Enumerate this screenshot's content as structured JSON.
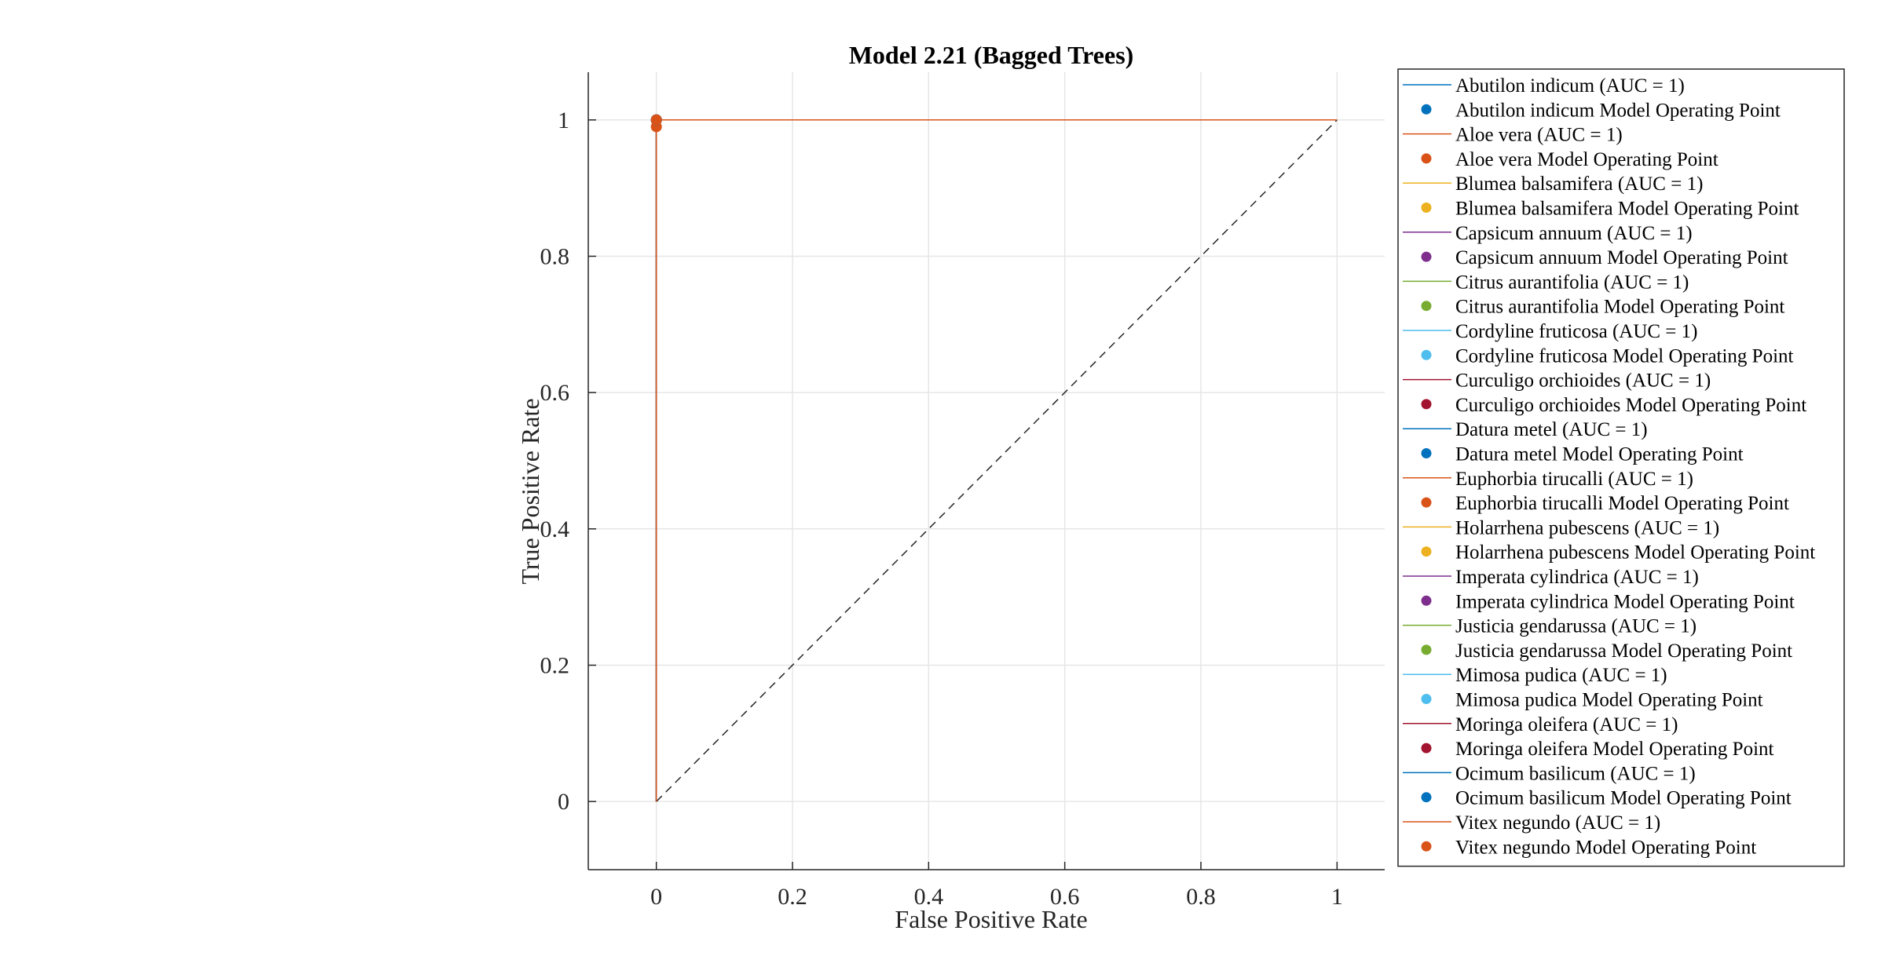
{
  "chart_data": {
    "type": "line",
    "title": "Model 2.21 (Bagged Trees)",
    "xlabel": "False Positive Rate",
    "ylabel": "True Positive Rate",
    "xlim": [
      -0.1,
      1.07
    ],
    "ylim": [
      -0.1,
      1.07
    ],
    "xticks": [
      0,
      0.2,
      0.4,
      0.6,
      0.8,
      1
    ],
    "yticks": [
      0,
      0.2,
      0.4,
      0.6,
      0.8,
      1
    ],
    "grid": true,
    "legend_position": "outside-right",
    "reference_line": {
      "x": [
        0,
        1
      ],
      "y": [
        0,
        1
      ],
      "style": "dashed",
      "color": "#262626"
    },
    "series": [
      {
        "name": "Abutilon indicum (AUC = 1)",
        "kind": "roc",
        "color": "#0072BD",
        "x": [
          0,
          0,
          1
        ],
        "y": [
          0,
          1,
          1
        ]
      },
      {
        "name": "Abutilon indicum Model Operating Point",
        "kind": "point",
        "color": "#0072BD",
        "x": [
          0
        ],
        "y": [
          1
        ]
      },
      {
        "name": "Aloe vera (AUC = 1)",
        "kind": "roc",
        "color": "#D95319",
        "x": [
          0,
          0,
          1
        ],
        "y": [
          0,
          1,
          1
        ]
      },
      {
        "name": "Aloe vera Model Operating Point",
        "kind": "point",
        "color": "#D95319",
        "x": [
          0
        ],
        "y": [
          0.99
        ]
      },
      {
        "name": "Blumea balsamifera (AUC = 1)",
        "kind": "roc",
        "color": "#EDB120",
        "x": [
          0,
          0,
          1
        ],
        "y": [
          0,
          1,
          1
        ]
      },
      {
        "name": "Blumea balsamifera Model Operating Point",
        "kind": "point",
        "color": "#EDB120",
        "x": [
          0
        ],
        "y": [
          1
        ]
      },
      {
        "name": "Capsicum annuum (AUC = 1)",
        "kind": "roc",
        "color": "#7E2F8E",
        "x": [
          0,
          0,
          1
        ],
        "y": [
          0,
          1,
          1
        ]
      },
      {
        "name": "Capsicum annuum Model Operating Point",
        "kind": "point",
        "color": "#7E2F8E",
        "x": [
          0
        ],
        "y": [
          1
        ]
      },
      {
        "name": "Citrus aurantifolia (AUC = 1)",
        "kind": "roc",
        "color": "#77AC30",
        "x": [
          0,
          0,
          1
        ],
        "y": [
          0,
          1,
          1
        ]
      },
      {
        "name": "Citrus aurantifolia Model Operating Point",
        "kind": "point",
        "color": "#77AC30",
        "x": [
          0
        ],
        "y": [
          1
        ]
      },
      {
        "name": "Cordyline fruticosa (AUC = 1)",
        "kind": "roc",
        "color": "#4DBEEE",
        "x": [
          0,
          0,
          1
        ],
        "y": [
          0,
          1,
          1
        ]
      },
      {
        "name": "Cordyline fruticosa Model Operating Point",
        "kind": "point",
        "color": "#4DBEEE",
        "x": [
          0
        ],
        "y": [
          1
        ]
      },
      {
        "name": "Curculigo orchioides (AUC = 1)",
        "kind": "roc",
        "color": "#A2142F",
        "x": [
          0,
          0,
          1
        ],
        "y": [
          0,
          1,
          1
        ]
      },
      {
        "name": "Curculigo orchioides Model Operating Point",
        "kind": "point",
        "color": "#A2142F",
        "x": [
          0
        ],
        "y": [
          1
        ]
      },
      {
        "name": "Datura metel (AUC = 1)",
        "kind": "roc",
        "color": "#0072BD",
        "x": [
          0,
          0,
          1
        ],
        "y": [
          0,
          1,
          1
        ]
      },
      {
        "name": "Datura metel Model Operating Point",
        "kind": "point",
        "color": "#0072BD",
        "x": [
          0
        ],
        "y": [
          1
        ]
      },
      {
        "name": "Euphorbia tirucalli (AUC = 1)",
        "kind": "roc",
        "color": "#D95319",
        "x": [
          0,
          0,
          1
        ],
        "y": [
          0,
          1,
          1
        ]
      },
      {
        "name": "Euphorbia tirucalli Model Operating Point",
        "kind": "point",
        "color": "#D95319",
        "x": [
          0
        ],
        "y": [
          1
        ]
      },
      {
        "name": "Holarrhena pubescens (AUC = 1)",
        "kind": "roc",
        "color": "#EDB120",
        "x": [
          0,
          0,
          1
        ],
        "y": [
          0,
          1,
          1
        ]
      },
      {
        "name": "Holarrhena pubescens Model Operating Point",
        "kind": "point",
        "color": "#EDB120",
        "x": [
          0
        ],
        "y": [
          1
        ]
      },
      {
        "name": "Imperata cylindrica (AUC = 1)",
        "kind": "roc",
        "color": "#7E2F8E",
        "x": [
          0,
          0,
          1
        ],
        "y": [
          0,
          1,
          1
        ]
      },
      {
        "name": "Imperata cylindrica Model Operating Point",
        "kind": "point",
        "color": "#7E2F8E",
        "x": [
          0
        ],
        "y": [
          1
        ]
      },
      {
        "name": "Justicia gendarussa (AUC = 1)",
        "kind": "roc",
        "color": "#77AC30",
        "x": [
          0,
          0,
          1
        ],
        "y": [
          0,
          1,
          1
        ]
      },
      {
        "name": "Justicia gendarussa Model Operating Point",
        "kind": "point",
        "color": "#77AC30",
        "x": [
          0
        ],
        "y": [
          1
        ]
      },
      {
        "name": "Mimosa pudica (AUC = 1)",
        "kind": "roc",
        "color": "#4DBEEE",
        "x": [
          0,
          0,
          1
        ],
        "y": [
          0,
          1,
          1
        ]
      },
      {
        "name": "Mimosa pudica Model Operating Point",
        "kind": "point",
        "color": "#4DBEEE",
        "x": [
          0
        ],
        "y": [
          1
        ]
      },
      {
        "name": "Moringa oleifera (AUC = 1)",
        "kind": "roc",
        "color": "#A2142F",
        "x": [
          0,
          0,
          1
        ],
        "y": [
          0,
          1,
          1
        ]
      },
      {
        "name": "Moringa oleifera Model Operating Point",
        "kind": "point",
        "color": "#A2142F",
        "x": [
          0
        ],
        "y": [
          1
        ]
      },
      {
        "name": "Ocimum basilicum (AUC = 1)",
        "kind": "roc",
        "color": "#0072BD",
        "x": [
          0,
          0,
          1
        ],
        "y": [
          0,
          1,
          1
        ]
      },
      {
        "name": "Ocimum basilicum Model Operating Point",
        "kind": "point",
        "color": "#0072BD",
        "x": [
          0
        ],
        "y": [
          1
        ]
      },
      {
        "name": "Vitex negundo (AUC = 1)",
        "kind": "roc",
        "color": "#D95319",
        "x": [
          0,
          0,
          1
        ],
        "y": [
          0,
          1,
          1
        ]
      },
      {
        "name": "Vitex negundo Model Operating Point",
        "kind": "point",
        "color": "#D95319",
        "x": [
          0
        ],
        "y": [
          1
        ]
      }
    ]
  }
}
